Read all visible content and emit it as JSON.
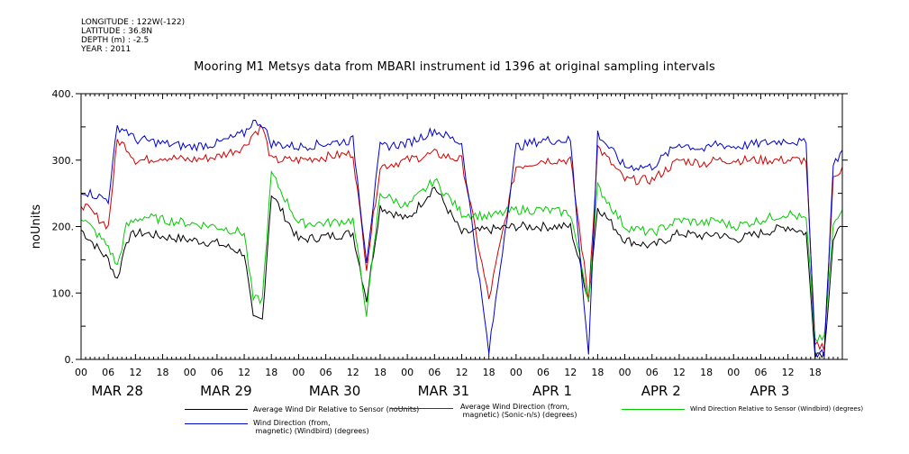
{
  "meta": {
    "longitude": "LONGITUDE : 122W(-122)",
    "latitude": "LATITUDE : 36.8N",
    "depth": "DEPTH (m) : -2.5",
    "year": "YEAR : 2011"
  },
  "chart_data": {
    "type": "line",
    "title": "Mooring M1 Metsys data from MBARI instrument id 1396 at original sampling intervals",
    "ylabel": "noUnits",
    "ylim": [
      0,
      400
    ],
    "yticks": [
      0,
      100,
      200,
      300,
      400
    ],
    "ytick_labels": [
      "0.",
      "100.",
      "200.",
      "300.",
      "400."
    ],
    "xlim_hours": [
      0,
      168
    ],
    "x_hour_labels": [
      "00",
      "06",
      "12",
      "18"
    ],
    "day_labels": [
      "MAR 28",
      "MAR 29",
      "MAR 30",
      "MAR 31",
      "APR  1",
      "APR  2",
      "APR  3"
    ],
    "x": [
      0,
      6,
      8,
      10,
      12,
      14,
      18,
      24,
      30,
      36,
      38,
      40,
      42,
      48,
      54,
      60,
      63,
      66,
      72,
      78,
      84,
      90,
      96,
      102,
      108,
      112,
      114,
      120,
      126,
      132,
      138,
      140,
      144,
      150,
      156,
      160,
      162,
      164,
      166,
      168
    ],
    "series": [
      {
        "name": "Average Wind Dir Relative to Sensor (noUnits)",
        "color": "#000000",
        "values": [
          195,
          150,
          120,
          180,
          190,
          190,
          185,
          180,
          175,
          160,
          60,
          60,
          250,
          180,
          185,
          190,
          90,
          230,
          210,
          260,
          190,
          195,
          200,
          200,
          200,
          90,
          230,
          180,
          170,
          190,
          185,
          190,
          180,
          190,
          200,
          190,
          10,
          10,
          180,
          200
        ]
      },
      {
        "name": "Average Wind Direction (from, magnetic) (Sonic-n/s) (degrees)",
        "color": "#d00000",
        "values": [
          235,
          200,
          330,
          320,
          300,
          300,
          305,
          300,
          305,
          320,
          340,
          350,
          300,
          300,
          305,
          310,
          140,
          290,
          300,
          310,
          300,
          90,
          290,
          300,
          300,
          90,
          320,
          270,
          270,
          300,
          295,
          300,
          300,
          300,
          300,
          300,
          20,
          20,
          270,
          290
        ]
      },
      {
        "name": "Wind Direction Relative to Sensor (Windbird) (degrees)",
        "color": "#00cc00",
        "values": [
          215,
          170,
          140,
          200,
          210,
          215,
          210,
          205,
          200,
          190,
          90,
          90,
          280,
          205,
          205,
          210,
          70,
          250,
          230,
          270,
          220,
          215,
          225,
          225,
          220,
          90,
          260,
          200,
          190,
          210,
          205,
          210,
          200,
          210,
          220,
          210,
          30,
          30,
          200,
          225
        ]
      },
      {
        "name": "Wind Direction (from, magnetic) (Windbird) (degrees)",
        "color": "#0000cc",
        "values": [
          255,
          240,
          350,
          345,
          330,
          330,
          325,
          320,
          325,
          340,
          360,
          355,
          325,
          320,
          325,
          330,
          150,
          320,
          325,
          345,
          325,
          10,
          320,
          330,
          330,
          5,
          340,
          290,
          290,
          325,
          315,
          325,
          320,
          325,
          330,
          325,
          10,
          10,
          290,
          315
        ]
      }
    ],
    "legend_position": "bottom"
  },
  "legend": [
    {
      "label": "Average Wind Dir Relative to Sensor (noUnits)",
      "color": "#000000"
    },
    {
      "label": "Average Wind Direction (from,\n magnetic) (Sonic-n/s) (degrees)",
      "color": "#d00000"
    },
    {
      "label": "Wind Direction Relative to Sensor (Windbird) (degrees)",
      "color": "#00cc00"
    },
    {
      "label": "Wind Direction (from,\n magnetic) (Windbird) (degrees)",
      "color": "#0000cc"
    }
  ]
}
